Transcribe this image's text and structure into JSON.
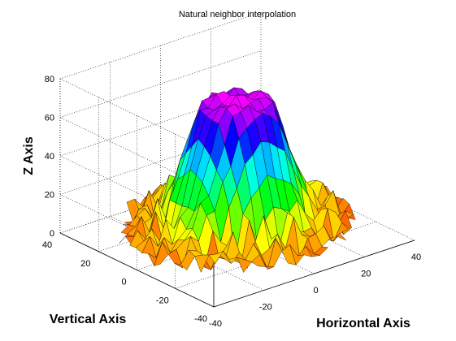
{
  "chart_data": {
    "type": "surface",
    "title": "Natural neighbor interpolation",
    "xlabel": "Horizontal Axis",
    "ylabel": "Vertical Axis",
    "zlabel": "Z Axis",
    "xlim": [
      -40,
      40
    ],
    "ylim": [
      -40,
      40
    ],
    "zlim": [
      0,
      80
    ],
    "x_ticks": [
      -40,
      -20,
      0,
      20,
      40
    ],
    "y_ticks": [
      -40,
      -20,
      0,
      20,
      40
    ],
    "z_ticks": [
      0,
      20,
      40,
      60,
      80
    ],
    "grid": true,
    "colormap": "hsv",
    "surface_description": "peak approx. z=75 near x=0,y=0, falling off to a noisy ring z=0-25 at radius ~25-35",
    "peak_z": 75,
    "ring_z": [
      0,
      25
    ]
  }
}
